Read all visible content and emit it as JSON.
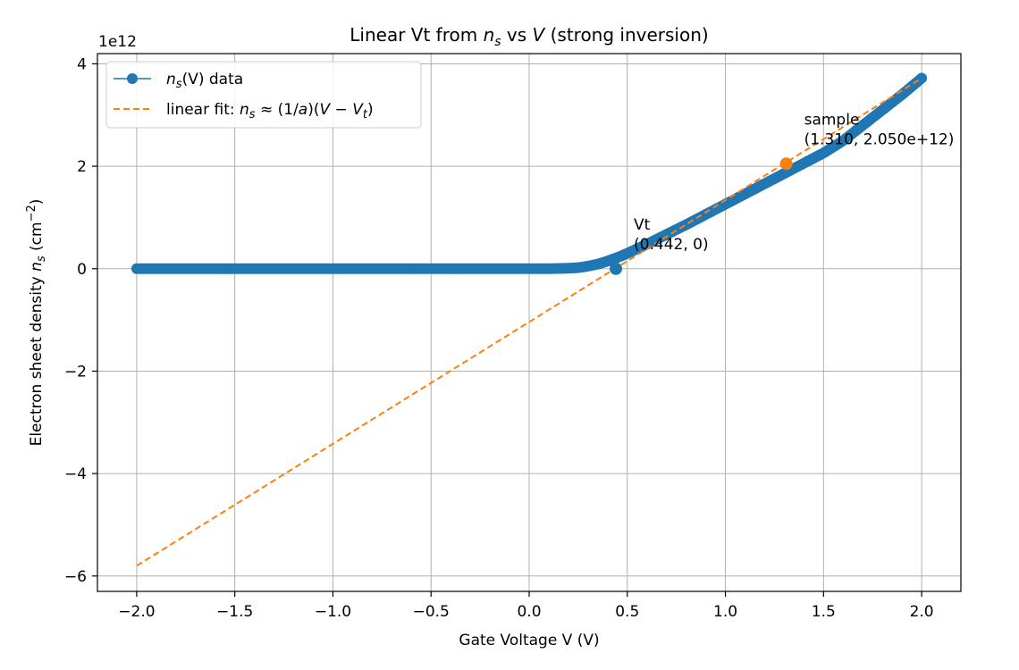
{
  "chart_data": {
    "type": "line",
    "title_parts": {
      "pre": "Linear Vt from ",
      "ns": "n",
      "ns_sub": "s",
      "mid": " vs ",
      "v": "V",
      "post": " (strong inversion)"
    },
    "xlabel": "Gate Voltage V (V)",
    "ylabel_parts": {
      "pre": "Electron sheet density ",
      "ns": "n",
      "ns_sub": "s",
      "unit_pre": " (cm",
      "unit_sup": "−2",
      "unit_post": ")"
    },
    "y_offset_label": "1e12",
    "xlim": [
      -2.2,
      2.2
    ],
    "ylim": [
      -6300000000000.0,
      4200000000000.0
    ],
    "x_ticks": [
      -2.0,
      -1.5,
      -1.0,
      -0.5,
      0.0,
      0.5,
      1.0,
      1.5,
      2.0
    ],
    "x_tick_labels": [
      "−2.0",
      "−1.5",
      "−1.0",
      "−0.5",
      "0.0",
      "0.5",
      "1.0",
      "1.5",
      "2.0"
    ],
    "y_ticks": [
      -6000000000000.0,
      -4000000000000.0,
      -2000000000000.0,
      0,
      2000000000000.0,
      4000000000000.0
    ],
    "y_tick_labels": [
      "−6",
      "−4",
      "−2",
      "0",
      "2",
      "4"
    ],
    "grid": true,
    "legend_position": "top-left",
    "series": [
      {
        "name_parts": {
          "ns": "n",
          "ns_sub": "s",
          "rest": "(V) data"
        },
        "style": "line-with-markers",
        "color": "#1f77b4",
        "x": [
          -2.0,
          -1.8,
          -1.6,
          -1.4,
          -1.2,
          -1.0,
          -0.8,
          -0.6,
          -0.4,
          -0.2,
          0.0,
          0.1,
          0.2,
          0.25,
          0.3,
          0.35,
          0.4,
          0.45,
          0.5,
          0.6,
          0.7,
          0.8,
          0.9,
          1.0,
          1.1,
          1.2,
          1.3,
          1.4,
          1.5,
          1.6,
          1.7,
          1.8,
          1.9,
          2.0
        ],
        "y": [
          0,
          0,
          0,
          0,
          0,
          0,
          0,
          0,
          0,
          0,
          0,
          0,
          10000000000.0,
          20000000000.0,
          50000000000.0,
          90000000000.0,
          150000000000.0,
          220000000000.0,
          300000000000.0,
          480000000000.0,
          670000000000.0,
          860000000000.0,
          1060000000000.0,
          1260000000000.0,
          1460000000000.0,
          1660000000000.0,
          1860000000000.0,
          2060000000000.0,
          2260000000000.0,
          2500000000000.0,
          2800000000000.0,
          3100000000000.0,
          3400000000000.0,
          3720000000000.0
        ]
      },
      {
        "name_parts": {
          "pre": "linear fit: ",
          "ns": "n",
          "ns_sub": "s",
          "post": " ≈ (1/",
          "a": "a",
          "mid": ")(",
          "V": "V",
          "minus": " − ",
          "Vt": "V",
          "Vt_sub": "t",
          "end": ")"
        },
        "style": "dashed",
        "color": "#ff7f0e",
        "x": [
          -2.0,
          2.0
        ],
        "y": [
          -5800000000000.0,
          3720000000000.0
        ]
      }
    ],
    "markers": [
      {
        "x": 0.442,
        "y": 0,
        "color": "#1f77b4",
        "label_line1": "Vt",
        "label_line2": "(0.442, 0)"
      },
      {
        "x": 1.31,
        "y": 2050000000000.0,
        "color": "#ff7f0e",
        "label_line1": "sample",
        "label_line2": "(1.310, 2.050e+12)"
      }
    ]
  }
}
